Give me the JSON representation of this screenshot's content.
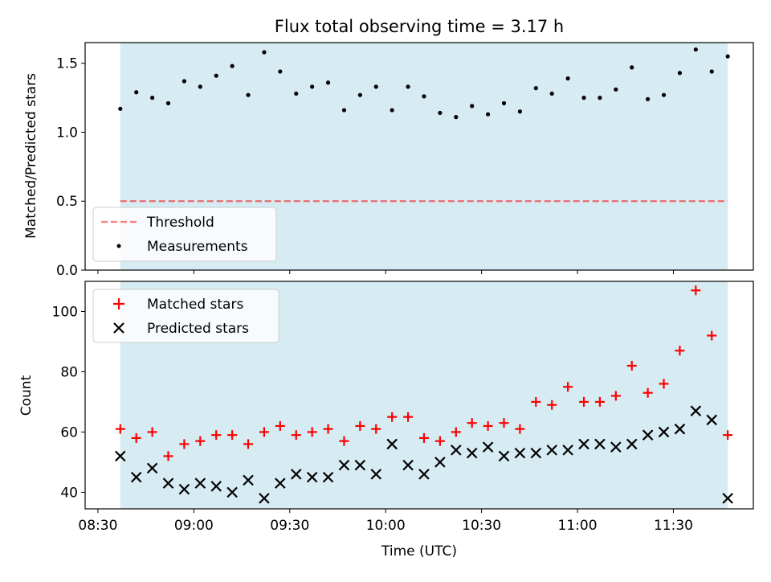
{
  "title": "Flux total observing time = 3.17 h",
  "colors": {
    "shade": "#add8e6",
    "threshold": "#ff0000",
    "measurements": "#000000",
    "matched": "#ff0000",
    "predicted": "#000000"
  },
  "chart_data": [
    {
      "type": "scatter",
      "panel": "top",
      "title": "Flux total observing time = 3.17 h",
      "xlabel": "",
      "ylabel": "Matched/Predicted stars",
      "ylim": [
        0,
        1.65
      ],
      "yticks": [
        "0.0",
        "0.5",
        "1.0",
        "1.5"
      ],
      "ytick_values": [
        0,
        0.5,
        1.0,
        1.5
      ],
      "xlim": [
        "08:26",
        "11:55"
      ],
      "shaded_span": [
        "08:37",
        "11:47"
      ],
      "legend_position": "lower left",
      "threshold": {
        "name": "Threshold",
        "value": 0.5,
        "x_range": [
          "08:37",
          "11:47"
        ],
        "style": "dashed"
      },
      "series": [
        {
          "name": "Measurements",
          "marker": "dot",
          "x": [
            "08:37",
            "08:42",
            "08:47",
            "08:52",
            "08:57",
            "09:02",
            "09:07",
            "09:12",
            "09:17",
            "09:22",
            "09:27",
            "09:32",
            "09:37",
            "09:42",
            "09:47",
            "09:52",
            "09:57",
            "10:02",
            "10:07",
            "10:12",
            "10:17",
            "10:22",
            "10:27",
            "10:32",
            "10:37",
            "10:42",
            "10:47",
            "10:52",
            "10:57",
            "11:02",
            "11:07",
            "11:12",
            "11:17",
            "11:22",
            "11:27",
            "11:32",
            "11:37",
            "11:42",
            "11:47"
          ],
          "y": [
            1.17,
            1.29,
            1.25,
            1.21,
            1.37,
            1.33,
            1.41,
            1.48,
            1.27,
            1.58,
            1.44,
            1.28,
            1.33,
            1.36,
            1.16,
            1.27,
            1.33,
            1.16,
            1.33,
            1.26,
            1.14,
            1.11,
            1.19,
            1.13,
            1.21,
            1.15,
            1.32,
            1.28,
            1.39,
            1.25,
            1.25,
            1.31,
            1.47,
            1.24,
            1.27,
            1.43,
            1.6,
            1.44,
            1.55
          ]
        }
      ]
    },
    {
      "type": "scatter",
      "panel": "bottom",
      "xlabel": "Time (UTC)",
      "ylabel": "Count",
      "ylim": [
        34.5,
        110
      ],
      "yticks": [
        "40",
        "60",
        "80",
        "100"
      ],
      "ytick_values": [
        40,
        60,
        80,
        100
      ],
      "xlim": [
        "08:26",
        "11:55"
      ],
      "xticks": [
        "08:30",
        "09:00",
        "09:30",
        "10:00",
        "10:30",
        "11:00",
        "11:30"
      ],
      "shaded_span": [
        "08:37",
        "11:47"
      ],
      "legend_position": "upper left",
      "series": [
        {
          "name": "Matched stars",
          "marker": "plus",
          "x": [
            "08:37",
            "08:42",
            "08:47",
            "08:52",
            "08:57",
            "09:02",
            "09:07",
            "09:12",
            "09:17",
            "09:22",
            "09:27",
            "09:32",
            "09:37",
            "09:42",
            "09:47",
            "09:52",
            "09:57",
            "10:02",
            "10:07",
            "10:12",
            "10:17",
            "10:22",
            "10:27",
            "10:32",
            "10:37",
            "10:42",
            "10:47",
            "10:52",
            "10:57",
            "11:02",
            "11:07",
            "11:12",
            "11:17",
            "11:22",
            "11:27",
            "11:32",
            "11:37",
            "11:42",
            "11:47"
          ],
          "y": [
            61,
            58,
            60,
            52,
            56,
            57,
            59,
            59,
            56,
            60,
            62,
            59,
            60,
            61,
            57,
            62,
            61,
            65,
            65,
            58,
            57,
            60,
            63,
            62,
            63,
            61,
            70,
            69,
            75,
            70,
            70,
            72,
            82,
            73,
            76,
            87,
            107,
            92,
            59
          ]
        },
        {
          "name": "Predicted stars",
          "marker": "x",
          "x": [
            "08:37",
            "08:42",
            "08:47",
            "08:52",
            "08:57",
            "09:02",
            "09:07",
            "09:12",
            "09:17",
            "09:22",
            "09:27",
            "09:32",
            "09:37",
            "09:42",
            "09:47",
            "09:52",
            "09:57",
            "10:02",
            "10:07",
            "10:12",
            "10:17",
            "10:22",
            "10:27",
            "10:32",
            "10:37",
            "10:42",
            "10:47",
            "10:52",
            "10:57",
            "11:02",
            "11:07",
            "11:12",
            "11:17",
            "11:22",
            "11:27",
            "11:32",
            "11:37",
            "11:42",
            "11:47"
          ],
          "y": [
            52,
            45,
            48,
            43,
            41,
            43,
            42,
            40,
            44,
            38,
            43,
            46,
            45,
            45,
            49,
            49,
            46,
            56,
            49,
            46,
            50,
            54,
            53,
            55,
            52,
            53,
            53,
            54,
            54,
            56,
            56,
            55,
            56,
            59,
            60,
            61,
            67,
            64,
            38
          ]
        }
      ]
    }
  ]
}
